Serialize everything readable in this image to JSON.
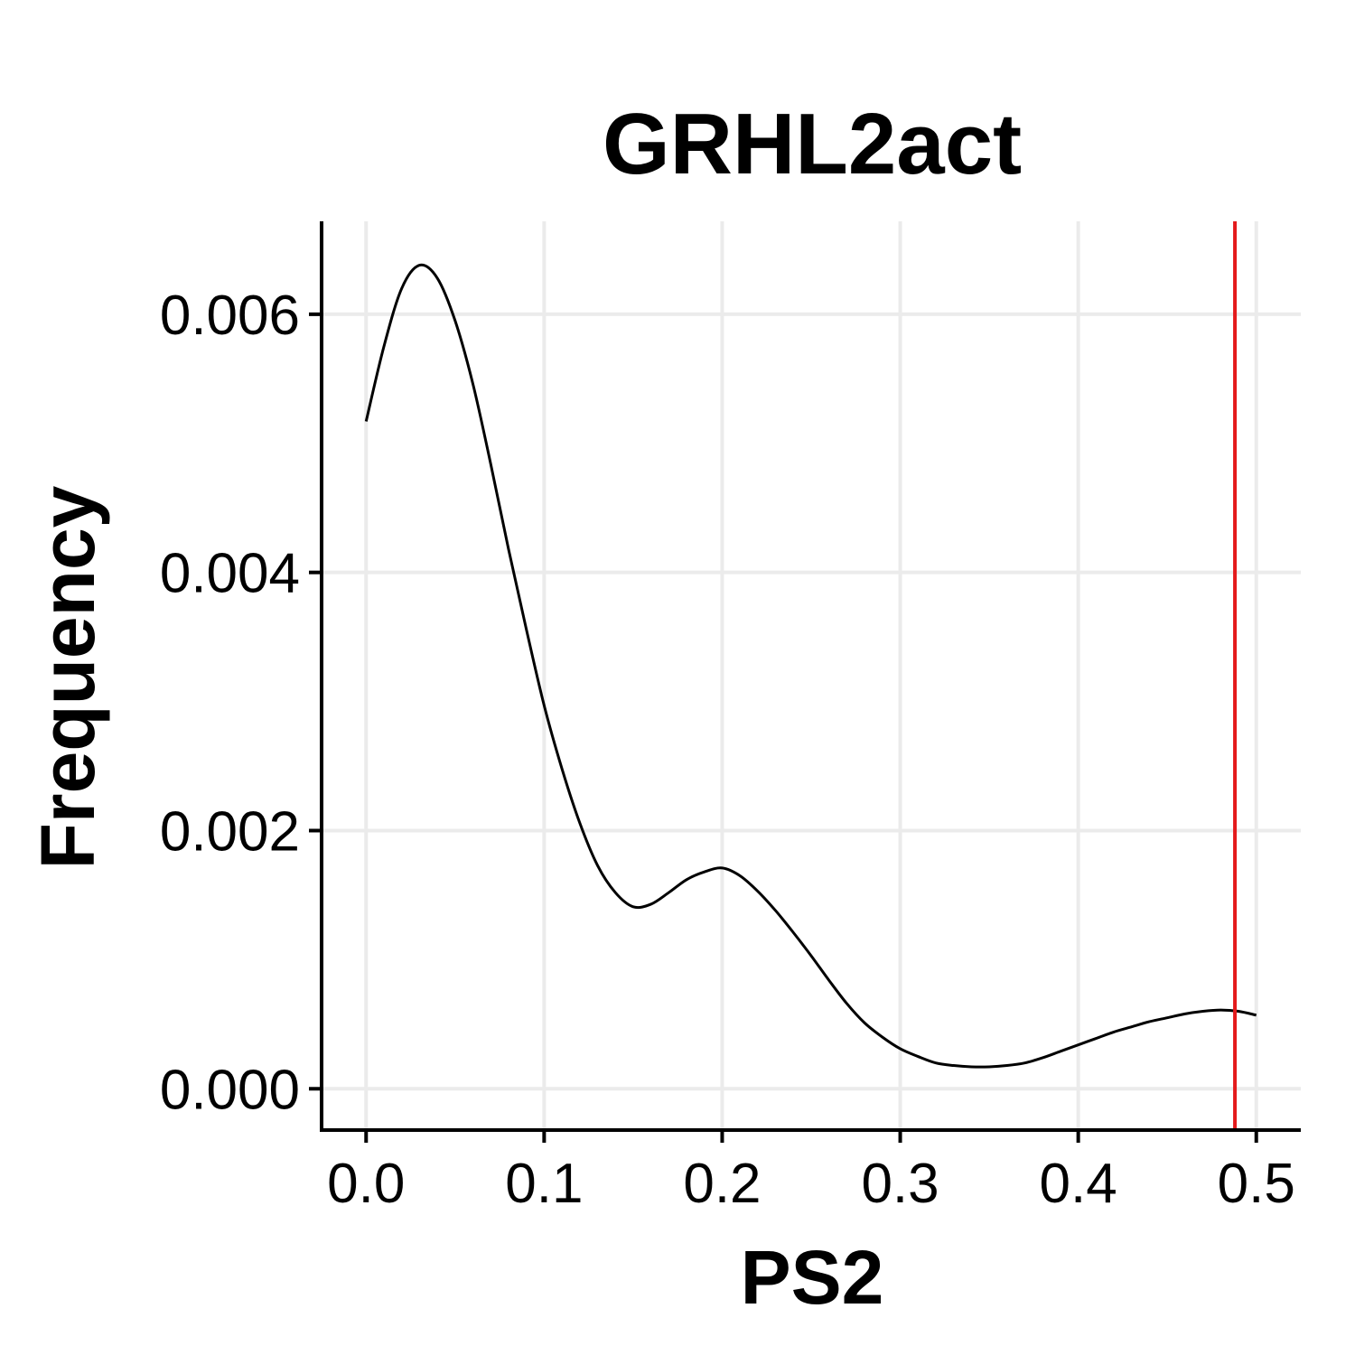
{
  "chart_data": {
    "type": "line",
    "title": "GRHL2act",
    "xlabel": "PS2",
    "ylabel": "Frequency",
    "xlim": [
      -0.025,
      0.525
    ],
    "ylim": [
      -0.00032,
      0.00672
    ],
    "x_ticks": [
      0.0,
      0.1,
      0.2,
      0.3,
      0.4,
      0.5
    ],
    "x_tick_labels": [
      "0.0",
      "0.1",
      "0.2",
      "0.3",
      "0.4",
      "0.5"
    ],
    "y_ticks": [
      0.0,
      0.002,
      0.004,
      0.006
    ],
    "y_tick_labels": [
      "0.000",
      "0.002",
      "0.004",
      "0.006"
    ],
    "grid": true,
    "legend": "none",
    "series": [
      {
        "color": "#000000",
        "x": [
          0.0,
          0.01,
          0.02,
          0.03,
          0.04,
          0.05,
          0.06,
          0.07,
          0.08,
          0.09,
          0.1,
          0.11,
          0.12,
          0.13,
          0.14,
          0.15,
          0.16,
          0.17,
          0.18,
          0.19,
          0.2,
          0.21,
          0.22,
          0.23,
          0.24,
          0.25,
          0.26,
          0.27,
          0.28,
          0.29,
          0.3,
          0.31,
          0.32,
          0.33,
          0.34,
          0.35,
          0.36,
          0.37,
          0.38,
          0.39,
          0.4,
          0.41,
          0.42,
          0.43,
          0.44,
          0.45,
          0.46,
          0.47,
          0.48,
          0.49,
          0.5
        ],
        "y": [
          0.00517,
          0.00575,
          0.0062,
          0.00638,
          0.00628,
          0.00595,
          0.00546,
          0.00484,
          0.00418,
          0.00356,
          0.00297,
          0.00248,
          0.00206,
          0.00173,
          0.00152,
          0.00141,
          0.00143,
          0.00152,
          0.00162,
          0.00168,
          0.00171,
          0.00165,
          0.00153,
          0.00138,
          0.00121,
          0.00103,
          0.00084,
          0.00066,
          0.00051,
          0.0004,
          0.00031,
          0.00025,
          0.0002,
          0.00018,
          0.00017,
          0.00017,
          0.00018,
          0.0002,
          0.00024,
          0.00029,
          0.00034,
          0.00039,
          0.00044,
          0.00048,
          0.00052,
          0.00055,
          0.00058,
          0.0006,
          0.00061,
          0.0006,
          0.00057
        ]
      }
    ],
    "vline": {
      "x": 0.488,
      "color": "#e41a1c"
    }
  }
}
